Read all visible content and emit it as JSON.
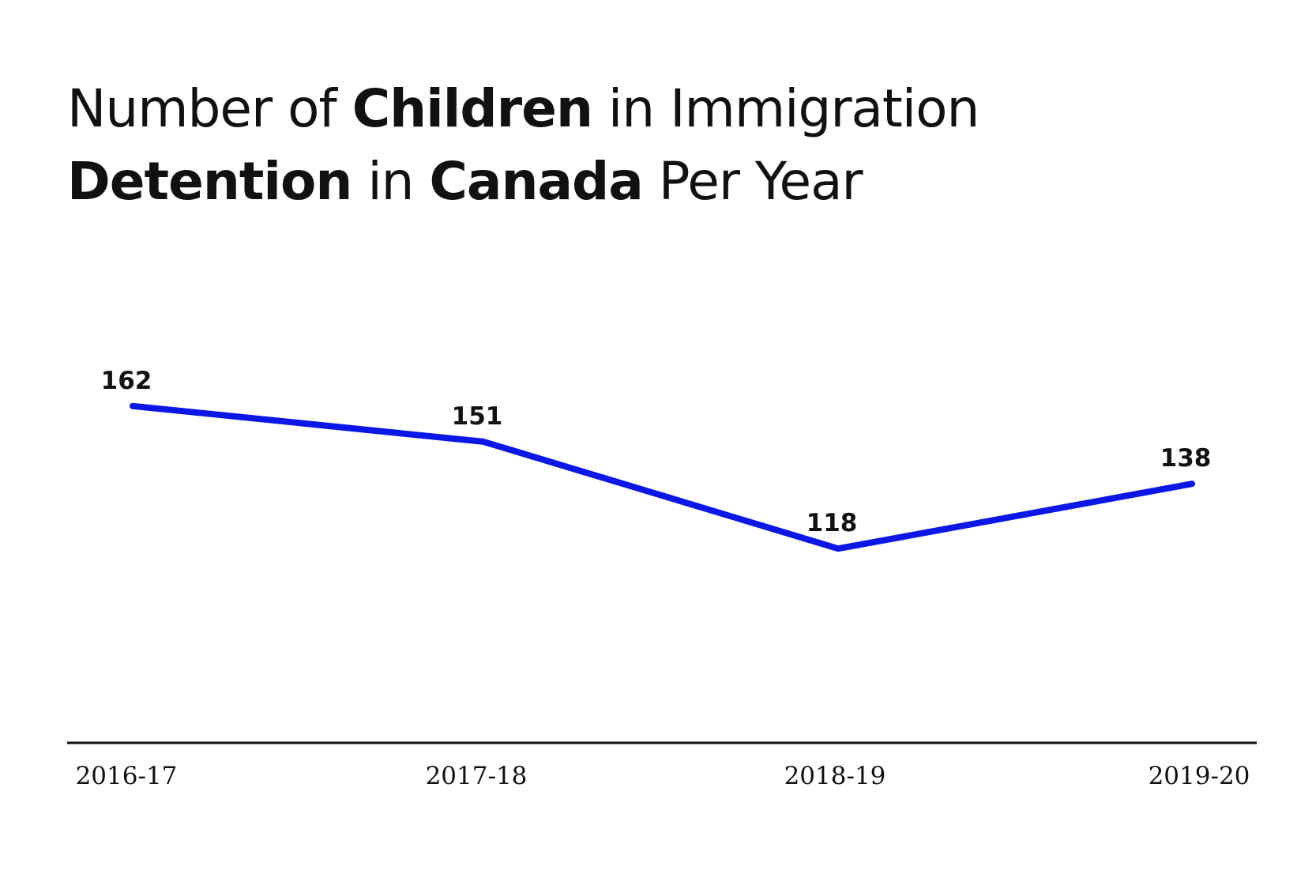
{
  "chart_data": {
    "type": "line",
    "title": [
      "Number of",
      "Children",
      "in Immigration",
      "Detention",
      "in",
      "Canada",
      "Per Year"
    ],
    "categories": [
      "2016-17",
      "2017-18",
      "2018-19",
      "2019-20"
    ],
    "series": [
      {
        "color": "#0b17e6",
        "values": [
          162,
          151,
          118,
          138
        ]
      }
    ]
  }
}
